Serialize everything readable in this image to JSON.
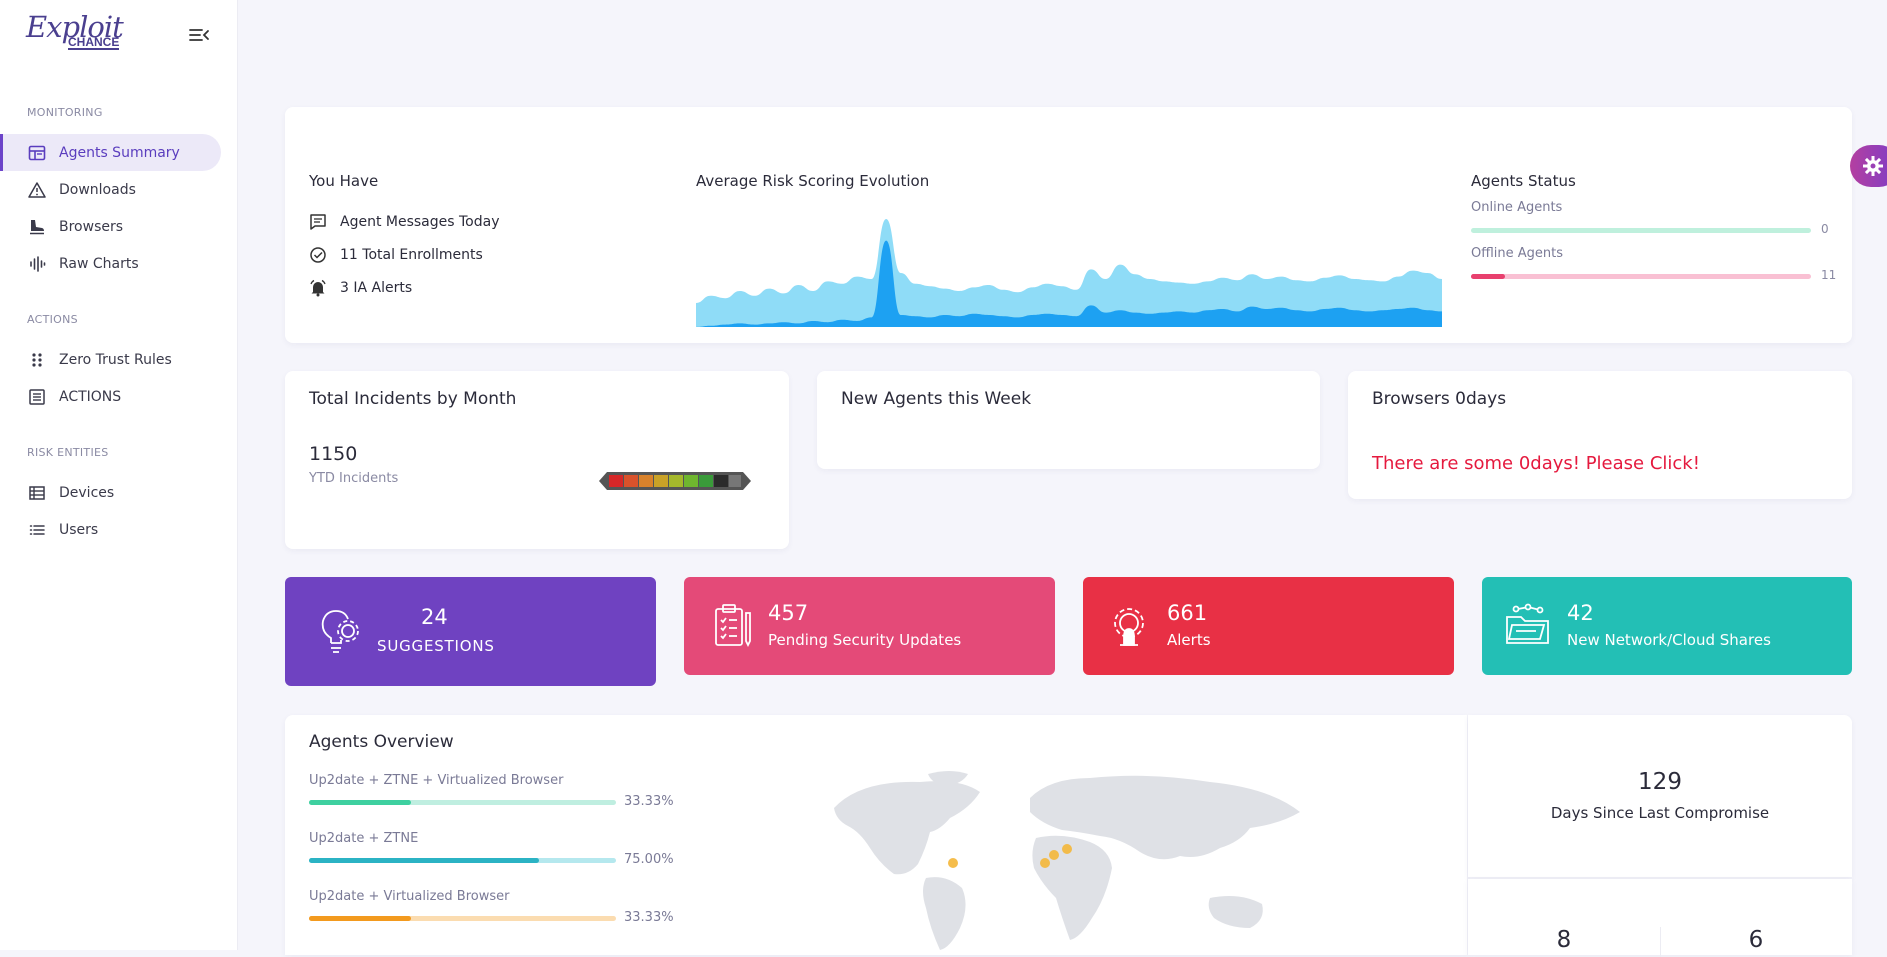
{
  "brand": {
    "line1": "Exploit",
    "line2": "CHANCE"
  },
  "sidebar": {
    "sections": [
      {
        "title": "MONITORING",
        "items": [
          {
            "label": "Agents Summary",
            "icon": "dashboard-icon",
            "active": true
          },
          {
            "label": "Downloads",
            "icon": "warning-icon"
          },
          {
            "label": "Browsers",
            "icon": "skate-icon"
          },
          {
            "label": "Raw Charts",
            "icon": "waveform-icon"
          }
        ]
      },
      {
        "title": "ACTIONS",
        "items": [
          {
            "label": "Zero Trust Rules",
            "icon": "grid-dots-icon"
          },
          {
            "label": "ACTIONS",
            "icon": "list-box-icon"
          }
        ]
      },
      {
        "title": "RISK ENTITIES",
        "items": [
          {
            "label": "Devices",
            "icon": "table-icon"
          },
          {
            "label": "Users",
            "icon": "list-icon"
          }
        ]
      }
    ]
  },
  "you_have": {
    "title": "You Have",
    "items": [
      {
        "label": "Agent Messages Today",
        "icon": "message-icon"
      },
      {
        "label": "11 Total Enrollments",
        "icon": "check-circle-icon"
      },
      {
        "label": "3 IA Alerts",
        "icon": "bell-icon"
      }
    ]
  },
  "risk_chart": {
    "title": "Average Risk Scoring Evolution"
  },
  "chart_data": {
    "type": "area",
    "title": "Average Risk Scoring Evolution",
    "series": [
      {
        "color": "#8fdcf7",
        "values": [
          20,
          26,
          24,
          30,
          26,
          32,
          28,
          35,
          30,
          38,
          36,
          42,
          40,
          90,
          45,
          36,
          34,
          32,
          30,
          33,
          35,
          31,
          29,
          33,
          36,
          34,
          31,
          48,
          40,
          52,
          44,
          40,
          38,
          37,
          36,
          38,
          41,
          39,
          44,
          40,
          42,
          39,
          38,
          41,
          43,
          40,
          39,
          38,
          42,
          47,
          45,
          40
        ]
      },
      {
        "color": "#1da1f2",
        "values": [
          0,
          1,
          2,
          3,
          2,
          3,
          4,
          3,
          5,
          4,
          6,
          5,
          8,
          72,
          10,
          9,
          8,
          10,
          9,
          11,
          10,
          9,
          8,
          10,
          11,
          10,
          9,
          18,
          12,
          14,
          12,
          11,
          12,
          13,
          12,
          14,
          15,
          13,
          17,
          15,
          16,
          14,
          13,
          15,
          16,
          14,
          13,
          14,
          15,
          16,
          14,
          13
        ]
      }
    ]
  },
  "agents_status": {
    "title": "Agents Status",
    "online": {
      "label": "Online Agents",
      "value": "0",
      "fraction": 0
    },
    "offline": {
      "label": "Offline Agents",
      "value": "11",
      "fraction": 0.1
    }
  },
  "incidents": {
    "title": "Total Incidents by Month",
    "value": "1150",
    "label": "YTD Incidents"
  },
  "new_agents": {
    "title": "New Agents this Week"
  },
  "zerodays": {
    "title": "Browsers 0days",
    "message": "There are some 0days! Please Click!"
  },
  "tiles": [
    {
      "value": "24",
      "label": "SUGGESTIONS",
      "color": "#6f42c1",
      "icon": "lightbulb-gear-icon"
    },
    {
      "value": "457",
      "label": "Pending Security Updates",
      "color": "#e44a78",
      "icon": "clipboard-check-icon"
    },
    {
      "value": "661",
      "label": "Alerts",
      "color": "#e83045",
      "icon": "gear-alert-icon"
    },
    {
      "value": "42",
      "label": "New Network/Cloud Shares",
      "color": "#23bfb5",
      "icon": "folder-share-icon"
    }
  ],
  "overview": {
    "title": "Agents Overview",
    "rows": [
      {
        "label": "Up2date + ZTNE + Virtualized Browser",
        "pct": "33.33%",
        "fraction": 0.3333,
        "color": "#3ed0a0",
        "track": "#bfeee0"
      },
      {
        "label": "Up2date + ZTNE",
        "pct": "75.00%",
        "fraction": 0.75,
        "color": "#2bb3c4",
        "track": "#b5e8ee"
      },
      {
        "label": "Up2date + Virtualized Browser",
        "pct": "33.33%",
        "fraction": 0.3333,
        "color": "#f39a1e",
        "track": "#fbdcb0"
      }
    ]
  },
  "compromise": {
    "value": "129",
    "label": "Days Since Last Compromise",
    "bottom_left": "8",
    "bottom_right": "6"
  },
  "colors": {
    "accent": "#6f42c1"
  }
}
